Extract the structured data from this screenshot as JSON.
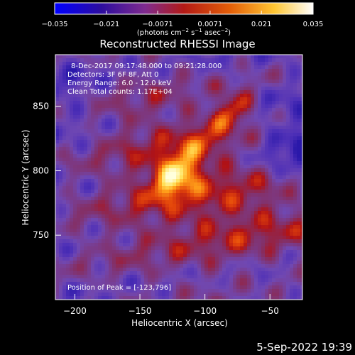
{
  "chart_data": {
    "type": "heatmap",
    "title": "Reconstructed RHESSI Image",
    "xlabel": "Heliocentric X (arcsec)",
    "ylabel": "Heliocentric Y (arcsec)",
    "xlim": [
      -215,
      -25
    ],
    "ylim": [
      700,
      890
    ],
    "x_ticks": [
      -200,
      -150,
      -100,
      -50
    ],
    "y_ticks": [
      750,
      800,
      850
    ],
    "x_tick_labels": [
      "−200",
      "−150",
      "−100",
      "−50"
    ],
    "y_tick_labels": [
      "750",
      "800",
      "850"
    ],
    "colorbar": {
      "range": [
        -0.035,
        0.035
      ],
      "tick_values": [
        -0.035,
        -0.021,
        -0.0071,
        0.0071,
        0.021,
        0.035
      ],
      "tick_labels": [
        "−0.035",
        "−0.021",
        "−0.0071",
        "0.0071",
        "0.021",
        "0.035"
      ],
      "unit_label_html": "(photons cm<tspan dy='-4' font-size='7'>−2</tspan><tspan dy='4'> s</tspan><tspan dy='-4' font-size='7'>−1</tspan><tspan dy='4'> asec</tspan><tspan dy='-4' font-size='7'>−2</tspan><tspan dy='4'>)</tspan>"
    },
    "annotations": [
      "8-Dec-2017 09:17:48.000 to 09:21:28.000",
      "Detectors: 3F 6F 8F, Att 0",
      "Energy Range: 6.0 - 12.0 keV",
      "Clean     Total counts: 1.17E+04"
    ],
    "peak": {
      "label": "Position of Peak = [-123,796]",
      "x": -123,
      "y": 796
    },
    "sources": [
      {
        "x": -123,
        "y": 796,
        "amp": 1.0,
        "sx": 14,
        "sy": 10,
        "rot": 40
      },
      {
        "x": -78,
        "y": 848,
        "amp": 0.62,
        "sx": 12,
        "sy": 8,
        "rot": 35
      },
      {
        "x": -100,
        "y": 828,
        "amp": 0.38,
        "sx": 24,
        "sy": 8,
        "rot": 45
      }
    ],
    "grid": false,
    "legend": "none"
  },
  "footer": {
    "timestamp": "5-Sep-2022 19:39"
  },
  "colors": {
    "background": "#000000",
    "text": "#ffffff",
    "purple": "#6f3ea3",
    "blue": "#0000ff",
    "red": "#c8141b",
    "yellow": "#ffff66",
    "white": "#ffffff"
  }
}
